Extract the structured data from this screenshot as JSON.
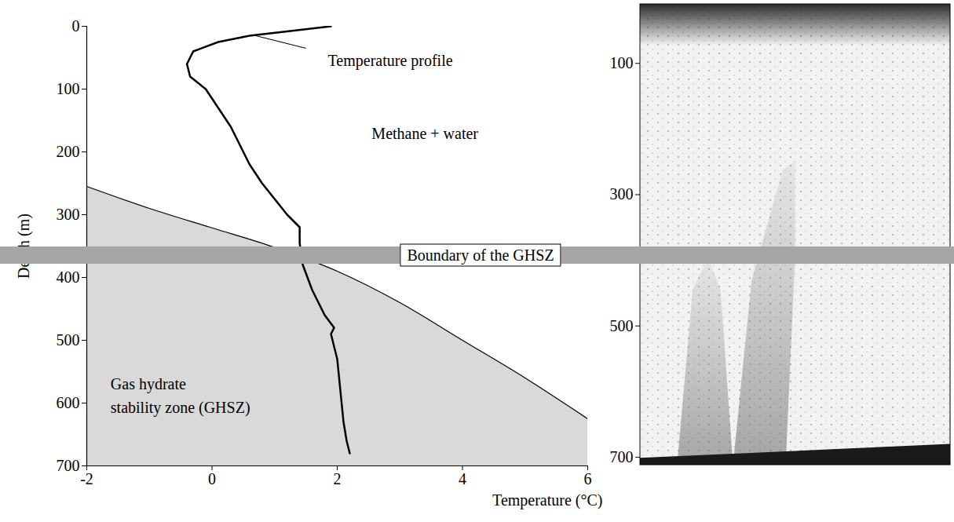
{
  "chart_data": [
    {
      "type": "line",
      "xlabel": "Temperature (°C)",
      "ylabel": "Depth (m)",
      "xlim": [
        -2,
        6
      ],
      "xticks": [
        -2,
        0,
        2,
        4,
        6
      ],
      "ylim": [
        0,
        700
      ],
      "yticks": [
        0,
        100,
        200,
        300,
        400,
        500,
        600,
        700
      ],
      "series": [
        {
          "name": "Temperature profile",
          "color": "#000000",
          "x": [
            1.9,
            1.2,
            0.6,
            0.1,
            -0.3,
            -0.4,
            -0.35,
            -0.1,
            0.1,
            0.3,
            0.45,
            0.6,
            0.8,
            1.0,
            1.2,
            1.4,
            1.4,
            1.45,
            1.6,
            1.8,
            1.95,
            1.9,
            2.0,
            2.05,
            2.1,
            2.15,
            2.2
          ],
          "values": [
            0,
            8,
            15,
            25,
            40,
            60,
            80,
            100,
            130,
            160,
            190,
            220,
            250,
            275,
            300,
            320,
            345,
            380,
            420,
            460,
            480,
            490,
            530,
            580,
            630,
            660,
            680
          ]
        }
      ],
      "region": {
        "label": "Gas hydrate\nstability zone (GHSZ)",
        "color": "#d9d9d9",
        "x": [
          -2,
          -1,
          0,
          1,
          2,
          3,
          4,
          5,
          6
        ],
        "values": [
          255,
          290,
          321,
          352,
          390,
          440,
          500,
          560,
          625
        ],
        "label_x": -1.62,
        "label_y": 585
      },
      "annotations": [
        {
          "text": "Temperature profile",
          "x": 1.85,
          "y": 55,
          "arrow_from": [
            0.7,
            15
          ],
          "arrow_to": [
            1.5,
            35
          ]
        },
        {
          "text": "Methane + water",
          "x": 2.55,
          "y": 171
        }
      ],
      "boundary": {
        "text": "Boundary of the GHSZ",
        "y": 365,
        "color": "#a6a6a6"
      }
    },
    {
      "type": "image",
      "ylim": [
        10,
        712
      ],
      "yticks": [
        100,
        300,
        500,
        700
      ],
      "tick_labels": "y"
    }
  ]
}
